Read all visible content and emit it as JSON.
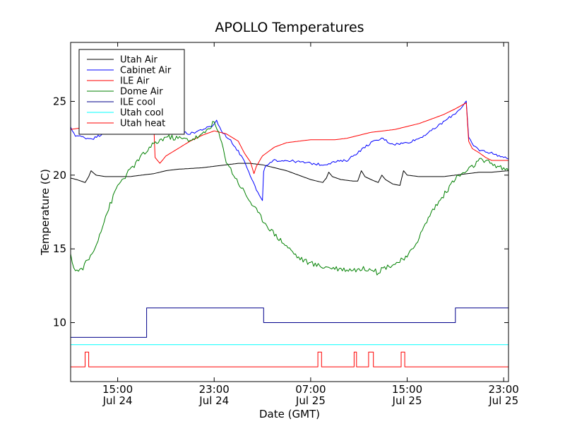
{
  "chart_data": {
    "type": "line",
    "title": "APOLLO Temperatures",
    "xlabel": "Date (GMT)",
    "ylabel": "Temperature (C)",
    "x_unit": "hours since Jul 24 00:00 GMT",
    "xlim": [
      11.1,
      47.4
    ],
    "ylim": [
      6.0,
      29.0
    ],
    "yticks": [
      10,
      15,
      20,
      25
    ],
    "xticks": [
      {
        "x": 15,
        "line1": "15:00",
        "line2": "Jul 24"
      },
      {
        "x": 23,
        "line1": "23:00",
        "line2": "Jul 24"
      },
      {
        "x": 31,
        "line1": "07:00",
        "line2": "Jul 25"
      },
      {
        "x": 39,
        "line1": "15:00",
        "line2": "Jul 25"
      },
      {
        "x": 47,
        "line1": "23:00",
        "line2": "Jul 25"
      }
    ],
    "legend_position": "top-left",
    "series": [
      {
        "name": "Utah Air",
        "color": "#000000",
        "step": false,
        "noise": 0,
        "points": [
          [
            11.1,
            19.8
          ],
          [
            11.6,
            19.7
          ],
          [
            12.3,
            19.5
          ],
          [
            12.6,
            19.9
          ],
          [
            12.8,
            20.3
          ],
          [
            13.2,
            20.0
          ],
          [
            14,
            19.9
          ],
          [
            16,
            19.9
          ],
          [
            18,
            20.1
          ],
          [
            19,
            20.3
          ],
          [
            20,
            20.4
          ],
          [
            22,
            20.5
          ],
          [
            24,
            20.7
          ],
          [
            25,
            20.8
          ],
          [
            26,
            20.8
          ],
          [
            27,
            20.7
          ],
          [
            28,
            20.5
          ],
          [
            29,
            20.3
          ],
          [
            30,
            20.0
          ],
          [
            31,
            19.7
          ],
          [
            32,
            19.5
          ],
          [
            32.3,
            19.8
          ],
          [
            32.5,
            20.2
          ],
          [
            32.8,
            19.9
          ],
          [
            33.5,
            19.7
          ],
          [
            34.5,
            19.6
          ],
          [
            34.9,
            19.6
          ],
          [
            35.2,
            20.3
          ],
          [
            35.5,
            19.9
          ],
          [
            36,
            19.7
          ],
          [
            36.6,
            19.5
          ],
          [
            36.9,
            20.0
          ],
          [
            37.2,
            19.7
          ],
          [
            37.8,
            19.4
          ],
          [
            38.4,
            19.3
          ],
          [
            38.7,
            20.3
          ],
          [
            39,
            20.0
          ],
          [
            40,
            19.9
          ],
          [
            42,
            19.9
          ],
          [
            43,
            20.0
          ],
          [
            44,
            20.1
          ],
          [
            45,
            20.2
          ],
          [
            46,
            20.2
          ],
          [
            47.4,
            20.3
          ]
        ]
      },
      {
        "name": "Cabinet Air",
        "color": "#0000ff",
        "step": false,
        "noise": 0.08,
        "points": [
          [
            11.1,
            23.2
          ],
          [
            11.5,
            22.7
          ],
          [
            12.5,
            22.5
          ],
          [
            13,
            22.5
          ],
          [
            13.5,
            22.7
          ],
          [
            14,
            23.0
          ],
          [
            16,
            23.0
          ],
          [
            18,
            22.9
          ],
          [
            20,
            23.0
          ],
          [
            21,
            22.8
          ],
          [
            22,
            23.1
          ],
          [
            22.8,
            23.3
          ],
          [
            23.2,
            23.7
          ],
          [
            23.6,
            23.0
          ],
          [
            24.5,
            22.2
          ],
          [
            25.5,
            21.0
          ],
          [
            26,
            20.0
          ],
          [
            26.5,
            19.0
          ],
          [
            27,
            18.2
          ],
          [
            27.1,
            20.3
          ],
          [
            27.3,
            20.6
          ],
          [
            28,
            21.0
          ],
          [
            29,
            21.0
          ],
          [
            30,
            20.9
          ],
          [
            31,
            20.8
          ],
          [
            32,
            20.7
          ],
          [
            33,
            20.9
          ],
          [
            34,
            21.0
          ],
          [
            35,
            21.6
          ],
          [
            36,
            22.2
          ],
          [
            37,
            22.5
          ],
          [
            37.5,
            22.2
          ],
          [
            38,
            22.1
          ],
          [
            39,
            22.2
          ],
          [
            40,
            22.5
          ],
          [
            41,
            23.0
          ],
          [
            42,
            23.6
          ],
          [
            43,
            24.2
          ],
          [
            43.5,
            24.6
          ],
          [
            43.9,
            25.0
          ],
          [
            44.1,
            22.5
          ],
          [
            44.5,
            22.0
          ],
          [
            45,
            21.7
          ],
          [
            46,
            21.5
          ],
          [
            47,
            21.2
          ],
          [
            47.4,
            21.1
          ]
        ]
      },
      {
        "name": "ILE Air",
        "color": "#ff0000",
        "step": false,
        "noise": 0,
        "points": [
          [
            11.1,
            23.1
          ],
          [
            12,
            23.2
          ],
          [
            14,
            23.2
          ],
          [
            16,
            23.3
          ],
          [
            17,
            23.3
          ],
          [
            18,
            23.3
          ],
          [
            18.1,
            21.2
          ],
          [
            18.5,
            20.8
          ],
          [
            19,
            21.3
          ],
          [
            20,
            21.8
          ],
          [
            21,
            22.3
          ],
          [
            22,
            22.7
          ],
          [
            23,
            23.0
          ],
          [
            24,
            22.8
          ],
          [
            25,
            22.3
          ],
          [
            25.5,
            21.5
          ],
          [
            26,
            20.9
          ],
          [
            26.3,
            20.1
          ],
          [
            26.5,
            20.6
          ],
          [
            27,
            21.3
          ],
          [
            28,
            21.9
          ],
          [
            29,
            22.2
          ],
          [
            30,
            22.3
          ],
          [
            31,
            22.4
          ],
          [
            32,
            22.4
          ],
          [
            33,
            22.4
          ],
          [
            34,
            22.5
          ],
          [
            35,
            22.7
          ],
          [
            36,
            22.9
          ],
          [
            37,
            23.0
          ],
          [
            38,
            23.1
          ],
          [
            39,
            23.3
          ],
          [
            40,
            23.5
          ],
          [
            41,
            23.8
          ],
          [
            42,
            24.1
          ],
          [
            43,
            24.5
          ],
          [
            43.9,
            24.9
          ],
          [
            44.1,
            22.3
          ],
          [
            44.4,
            21.8
          ],
          [
            45,
            21.5
          ],
          [
            45.5,
            21.2
          ],
          [
            46,
            21.0
          ],
          [
            47.4,
            21.0
          ]
        ]
      },
      {
        "name": "Dome Air",
        "color": "#008000",
        "step": false,
        "noise": 0.18,
        "points": [
          [
            11.1,
            14.5
          ],
          [
            11.5,
            13.5
          ],
          [
            12,
            13.6
          ],
          [
            13,
            14.8
          ],
          [
            14,
            17.2
          ],
          [
            15,
            19.3
          ],
          [
            16,
            20.3
          ],
          [
            17,
            21.3
          ],
          [
            18,
            22.1
          ],
          [
            19,
            22.6
          ],
          [
            20,
            22.5
          ],
          [
            21,
            22.4
          ],
          [
            22,
            22.7
          ],
          [
            23,
            23.6
          ],
          [
            23.5,
            22.5
          ],
          [
            24,
            21.0
          ],
          [
            24.5,
            20.2
          ],
          [
            25,
            19.5
          ],
          [
            26,
            18.2
          ],
          [
            27,
            17.0
          ],
          [
            28,
            16.0
          ],
          [
            29,
            15.2
          ],
          [
            30,
            14.4
          ],
          [
            31,
            14.0
          ],
          [
            32,
            13.8
          ],
          [
            33,
            13.7
          ],
          [
            34,
            13.6
          ],
          [
            35,
            13.6
          ],
          [
            36,
            13.7
          ],
          [
            36.5,
            13.4
          ],
          [
            37,
            13.7
          ],
          [
            38,
            14.0
          ],
          [
            39,
            14.4
          ],
          [
            40,
            15.8
          ],
          [
            41,
            17.5
          ],
          [
            42,
            18.6
          ],
          [
            43,
            19.8
          ],
          [
            44,
            20.3
          ],
          [
            45,
            21.0
          ],
          [
            46,
            20.8
          ],
          [
            47,
            20.4
          ],
          [
            47.4,
            20.3
          ]
        ]
      },
      {
        "name": "ILE cool",
        "color": "#00008b",
        "step": true,
        "noise": 0,
        "points": [
          [
            11.1,
            9.0
          ],
          [
            17.4,
            9.0
          ],
          [
            17.4,
            11.0
          ],
          [
            27.1,
            11.0
          ],
          [
            27.1,
            10.0
          ],
          [
            43.0,
            10.0
          ],
          [
            43.0,
            11.0
          ],
          [
            47.4,
            11.0
          ]
        ]
      },
      {
        "name": "Utah cool",
        "color": "#00ffff",
        "step": true,
        "noise": 0,
        "points": [
          [
            11.1,
            8.5
          ],
          [
            47.4,
            8.5
          ]
        ]
      },
      {
        "name": "Utah heat",
        "color": "#ff0000",
        "step": true,
        "noise": 0,
        "points": [
          [
            11.1,
            7.0
          ],
          [
            12.3,
            7.0
          ],
          [
            12.3,
            8.0
          ],
          [
            12.6,
            8.0
          ],
          [
            12.6,
            7.0
          ],
          [
            31.6,
            7.0
          ],
          [
            31.6,
            8.0
          ],
          [
            31.9,
            8.0
          ],
          [
            31.9,
            7.0
          ],
          [
            34.6,
            7.0
          ],
          [
            34.6,
            8.0
          ],
          [
            34.8,
            8.0
          ],
          [
            34.8,
            7.0
          ],
          [
            35.8,
            7.0
          ],
          [
            35.8,
            8.0
          ],
          [
            36.2,
            8.0
          ],
          [
            36.2,
            7.0
          ],
          [
            38.5,
            7.0
          ],
          [
            38.5,
            8.0
          ],
          [
            38.8,
            8.0
          ],
          [
            38.8,
            7.0
          ],
          [
            47.4,
            7.0
          ]
        ]
      }
    ]
  }
}
